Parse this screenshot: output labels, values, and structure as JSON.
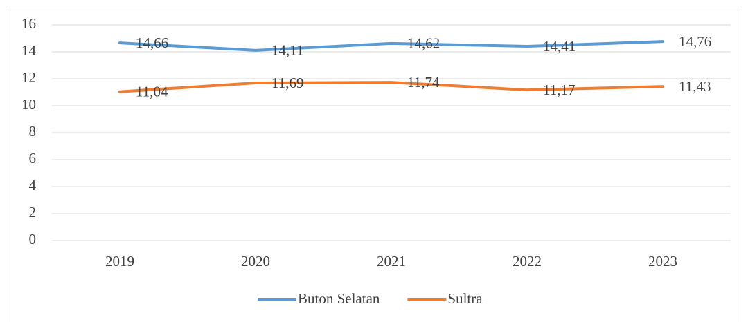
{
  "chart_data": {
    "type": "line",
    "categories": [
      "2019",
      "2020",
      "2021",
      "2022",
      "2023"
    ],
    "series": [
      {
        "name": "Buton Selatan",
        "color": "#5b9bd5",
        "values": [
          14.66,
          14.11,
          14.62,
          14.41,
          14.76
        ],
        "value_labels": [
          "14,66",
          "14,11",
          "14,62",
          "14,41",
          "14,76"
        ]
      },
      {
        "name": "Sultra",
        "color": "#ed7d31",
        "values": [
          11.04,
          11.69,
          11.74,
          11.17,
          11.43
        ],
        "value_labels": [
          "11,04",
          "11,69",
          "11,74",
          "11,17",
          "11,43"
        ]
      }
    ],
    "ylim": [
      0,
      16
    ],
    "yticks": [
      0,
      2,
      4,
      6,
      8,
      10,
      12,
      14,
      16
    ],
    "grid": true,
    "legend": "bottom"
  }
}
